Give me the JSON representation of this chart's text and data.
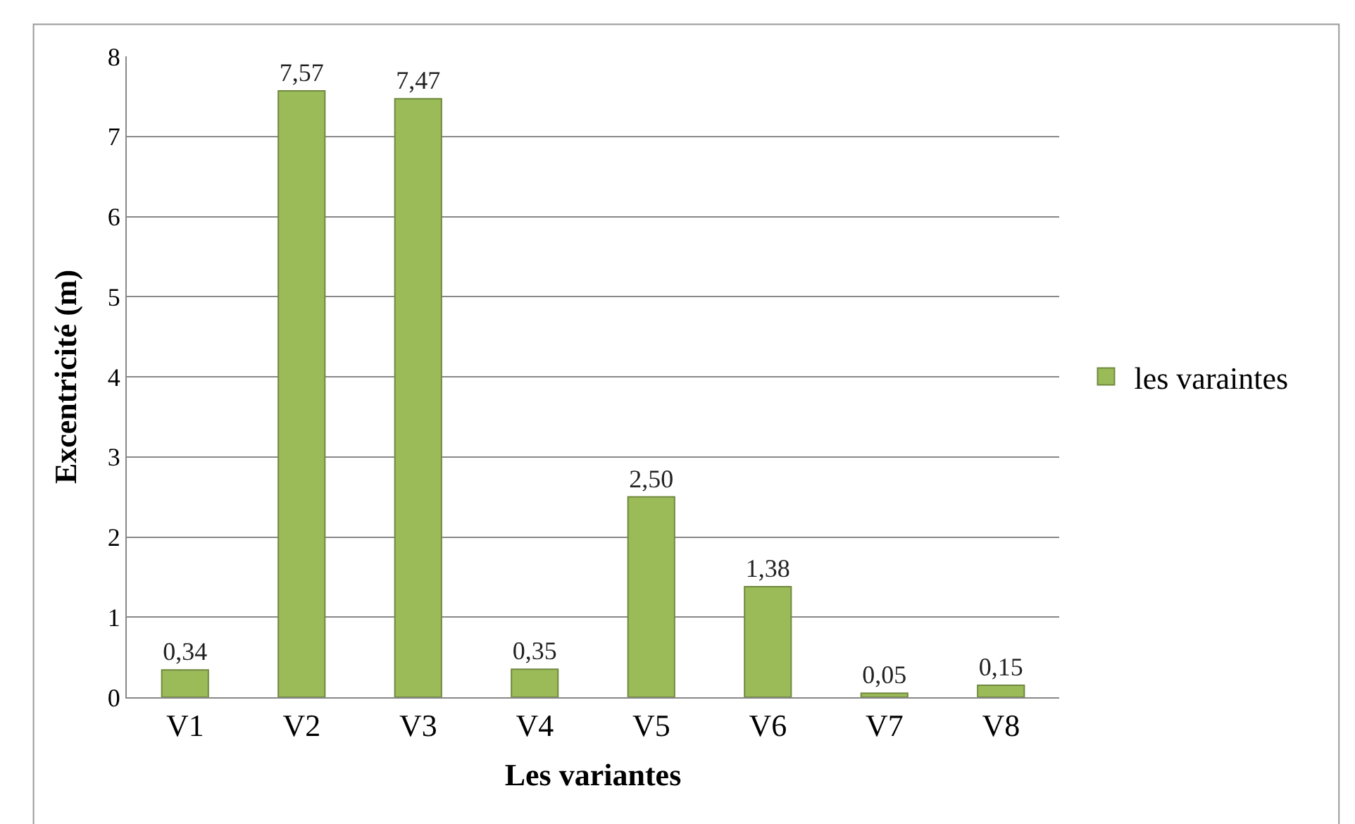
{
  "chart_data": {
    "type": "bar",
    "xlabel": "Les variantes",
    "ylabel": "Excentricité (m)",
    "categories": [
      "V1",
      "V2",
      "V3",
      "V4",
      "V5",
      "V6",
      "V7",
      "V8"
    ],
    "series": [
      {
        "name": "les varaintes",
        "color": "#9bbb59",
        "values": [
          0.34,
          7.57,
          7.47,
          0.35,
          2.5,
          1.38,
          0.05,
          0.15
        ],
        "value_labels": [
          "0,34",
          "7,57",
          "7,47",
          "0,35",
          "2,50",
          "1,38",
          "0,05",
          "0,15"
        ]
      }
    ],
    "ylim": [
      0,
      8
    ],
    "yticks": [
      0,
      1,
      2,
      3,
      4,
      5,
      6,
      7,
      8
    ],
    "grid": "y",
    "legend": "right"
  }
}
